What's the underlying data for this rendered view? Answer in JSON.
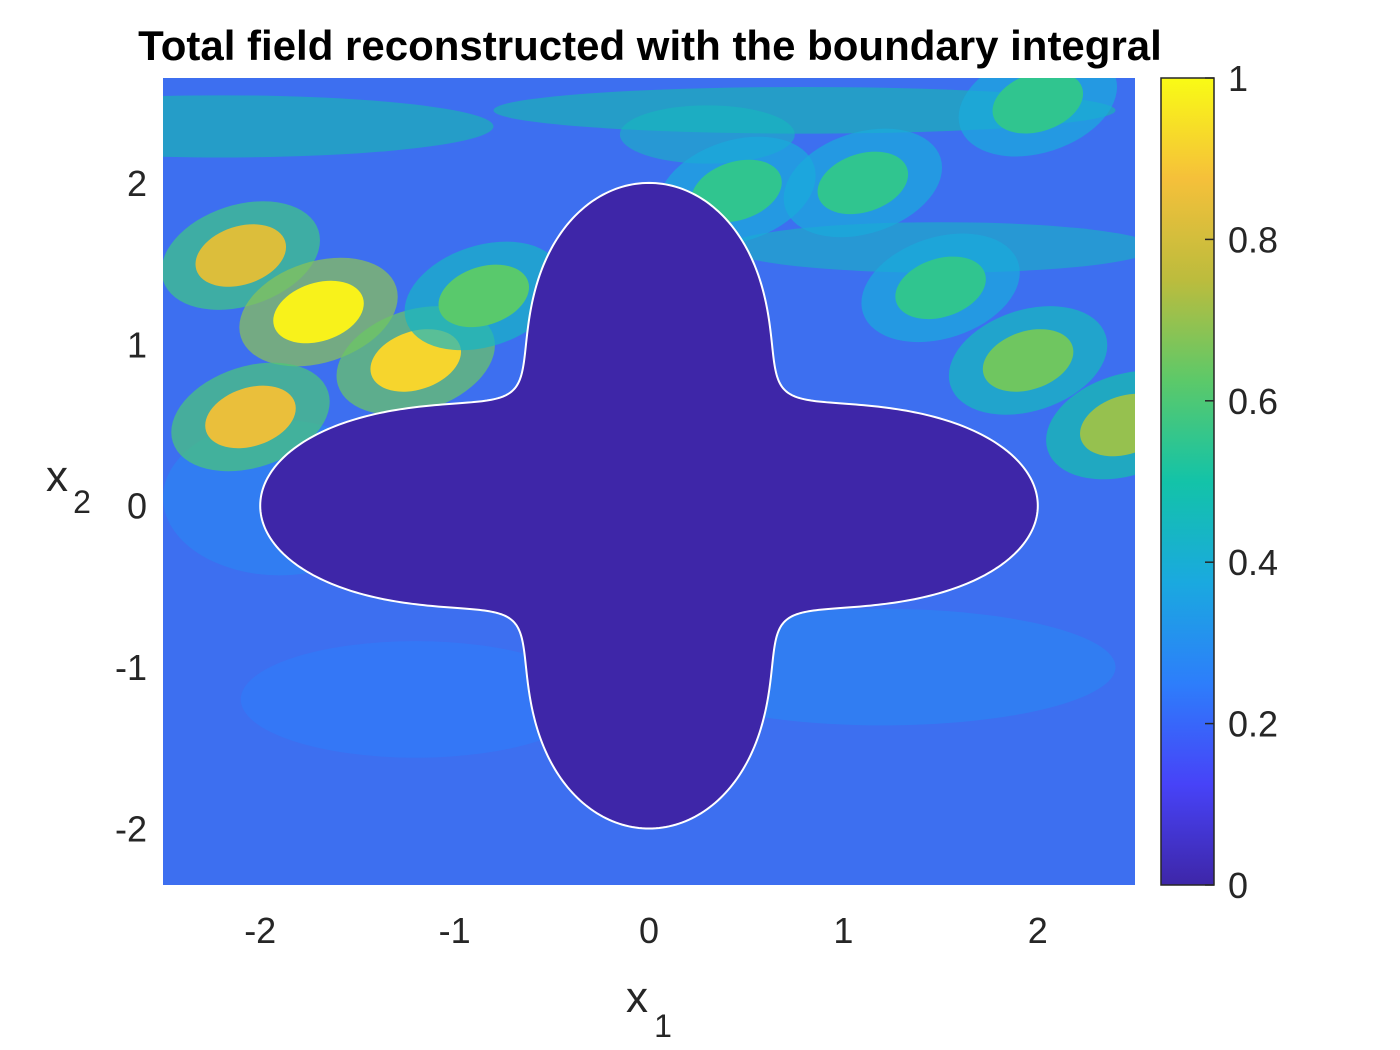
{
  "chart_data": {
    "type": "heatmap",
    "title": "Total field reconstructed with the boundary integral",
    "xlabel": {
      "main": "x",
      "sub": "1"
    },
    "ylabel": {
      "main": "x",
      "sub": "2"
    },
    "xlim": [
      -2.5,
      2.5
    ],
    "ylim": [
      -2.35,
      2.65
    ],
    "xticks": [
      -2,
      -1,
      0,
      1,
      2
    ],
    "xtick_labels": [
      "-2",
      "-1",
      "0",
      "1",
      "2"
    ],
    "yticks": [
      -2,
      -1,
      0,
      1,
      2
    ],
    "ytick_labels": [
      "-2",
      "-1",
      "0",
      "1",
      "2"
    ],
    "colorbar": {
      "range": [
        0,
        1
      ],
      "ticks": [
        0,
        0.2,
        0.4,
        0.6,
        0.8,
        1
      ],
      "tick_labels": [
        "0",
        "0.2",
        "0.4",
        "0.6",
        "0.8",
        "1"
      ],
      "colormap": "parula",
      "colormap_stops": [
        "#3e26a8",
        "#4743f8",
        "#2d7efb",
        "#1aa9df",
        "#13c3a8",
        "#5cc969",
        "#bcbc3d",
        "#f5c03a",
        "#f9fb15"
      ]
    },
    "obstacle": {
      "shape": "four-lobed star",
      "boundary_color": "#ffffff",
      "fill_color": "#3e26a8",
      "extent": {
        "x_min": -2.0,
        "x_max": 2.0,
        "y_min": -2.0,
        "y_max": 2.0
      }
    },
    "field_highlights": [
      {
        "x": -2.1,
        "y": 1.55,
        "value": 0.82
      },
      {
        "x": -1.7,
        "y": 1.2,
        "value": 0.98
      },
      {
        "x": -1.2,
        "y": 0.9,
        "value": 0.92
      },
      {
        "x": -2.05,
        "y": 0.55,
        "value": 0.85
      },
      {
        "x": -0.85,
        "y": 1.3,
        "value": 0.62
      },
      {
        "x": 0.45,
        "y": 1.95,
        "value": 0.55
      },
      {
        "x": 1.1,
        "y": 2.0,
        "value": 0.55
      },
      {
        "x": 2.0,
        "y": 2.5,
        "value": 0.55
      },
      {
        "x": 1.5,
        "y": 1.35,
        "value": 0.55
      },
      {
        "x": 1.95,
        "y": 0.9,
        "value": 0.65
      },
      {
        "x": 2.45,
        "y": 0.5,
        "value": 0.7
      }
    ]
  }
}
